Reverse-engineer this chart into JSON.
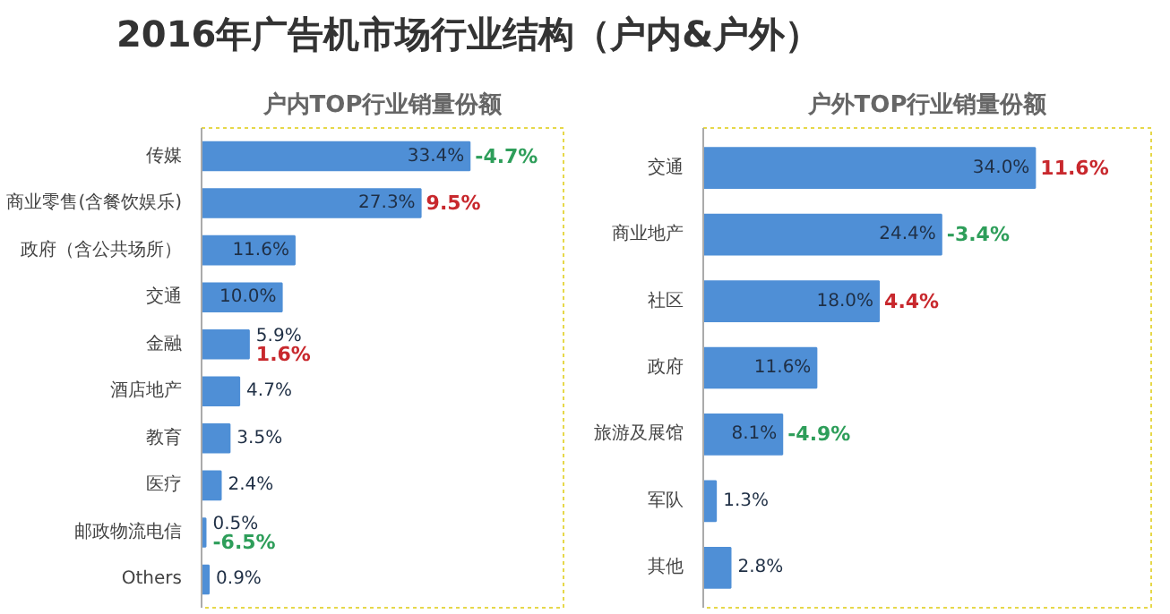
{
  "chart_data": [
    {
      "type": "other",
      "title": "2016年广告机市场行业结构（户内&户外）"
    },
    {
      "type": "bar",
      "orientation": "horizontal",
      "data_labels": true,
      "title": "户内TOP行业销量份额",
      "color": "#4f8fd6",
      "categories": [
        "传媒",
        "商业零售(含餐饮娱乐)",
        "政府（含公共场所）",
        "交通",
        "金融",
        "酒店地产",
        "教育",
        "医疗",
        "邮政物流电信",
        "Others"
      ],
      "values": [
        33.4,
        27.3,
        11.6,
        10.0,
        5.9,
        4.7,
        3.5,
        2.4,
        0.5,
        0.9
      ],
      "value_labels": [
        "33.4%",
        "27.3%",
        "11.6%",
        "10.0%",
        "5.9%",
        "4.7%",
        "3.5%",
        "2.4%",
        "0.5%",
        "0.9%"
      ],
      "annotations": [
        {
          "text": "-4.7%",
          "x": 33.4,
          "y": "传媒"
        },
        {
          "text": "9.5%",
          "x": 27.3,
          "y": "商业零售(含餐饮娱乐)"
        },
        {
          "text": "1.6%",
          "x": 5.9,
          "y": "金融"
        },
        {
          "text": "-6.5%",
          "x": 0.5,
          "y": "邮政物流电信"
        }
      ]
    },
    {
      "type": "bar",
      "orientation": "horizontal",
      "data_labels": true,
      "title": "户外TOP行业销量份额",
      "color": "#4f8fd6",
      "categories": [
        "交通",
        "商业地产",
        "社区",
        "政府",
        "旅游及展馆",
        "军队",
        "其他"
      ],
      "values": [
        34.0,
        24.4,
        18.0,
        11.6,
        8.1,
        1.3,
        2.8
      ],
      "value_labels": [
        "34.0%",
        "24.4%",
        "18.0%",
        "11.6%",
        "8.1%",
        "1.3%",
        "2.8%"
      ],
      "annotations": [
        {
          "text": "11.6%",
          "x": 34.0,
          "y": "交通"
        },
        {
          "text": "-3.4%",
          "x": 24.4,
          "y": "商业地产"
        },
        {
          "text": "4.4%",
          "x": 18.0,
          "y": "社区"
        },
        {
          "text": "-4.9%",
          "x": 8.1,
          "y": "旅游及展馆"
        }
      ]
    }
  ]
}
